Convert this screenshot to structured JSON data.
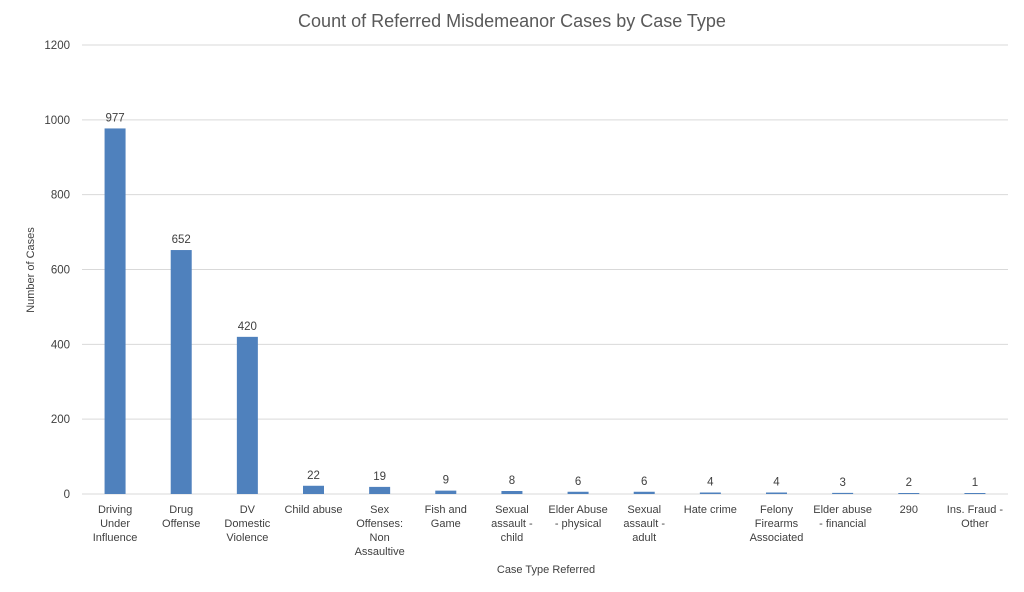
{
  "chart_data": {
    "type": "bar",
    "title": "Count of Referred Misdemeanor Cases by Case Type",
    "xlabel": "Case Type  Referred",
    "ylabel": "Number  of Cases",
    "ylim": [
      0,
      1200
    ],
    "yticks": [
      0,
      200,
      400,
      600,
      800,
      1000,
      1200
    ],
    "grid": true,
    "legend": "none",
    "bar_color": "#4F81BD",
    "categories": [
      [
        "Driving",
        "Under",
        "Influence"
      ],
      [
        "Drug",
        "Offense"
      ],
      [
        "DV",
        "Domestic",
        "Violence"
      ],
      [
        "Child abuse"
      ],
      [
        "Sex",
        "Offenses:",
        "Non",
        "Assaultive"
      ],
      [
        "Fish and",
        "Game"
      ],
      [
        "Sexual",
        "assault -",
        "child"
      ],
      [
        "Elder Abuse",
        "- physical"
      ],
      [
        "Sexual",
        "assault -",
        "adult"
      ],
      [
        "Hate crime"
      ],
      [
        "Felony",
        "Firearms",
        "Associated"
      ],
      [
        "Elder abuse",
        "- financial"
      ],
      [
        "290"
      ],
      [
        "Ins. Fraud -",
        "Other"
      ]
    ],
    "values": [
      977,
      652,
      420,
      22,
      19,
      9,
      8,
      6,
      6,
      4,
      4,
      3,
      2,
      1
    ]
  }
}
